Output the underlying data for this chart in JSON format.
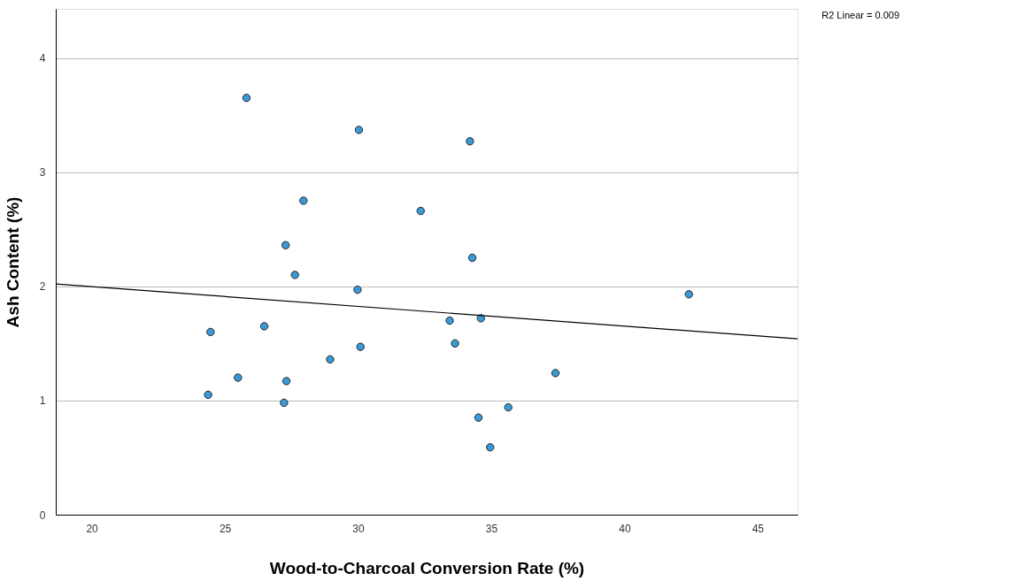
{
  "chart_data": {
    "type": "scatter",
    "xlabel": "Wood-to-Charcoal Conversion Rate (%)",
    "ylabel": "Ash Content (%)",
    "xlim": [
      18.65,
      46.5
    ],
    "xticks": [
      20,
      25,
      30,
      35,
      40,
      45
    ],
    "ylim": [
      0,
      4.43
    ],
    "yticks": [
      0,
      1,
      2,
      3,
      4
    ],
    "grid": "y",
    "annotations": [
      "R2 Linear =  0.009"
    ],
    "series": [
      {
        "type": "scatter",
        "marker": "circle",
        "color": "#3a9ad9",
        "x": [
          25.81,
          30.03,
          34.2,
          27.95,
          32.35,
          27.28,
          34.29,
          27.63,
          29.98,
          42.42,
          33.44,
          34.61,
          24.46,
          26.48,
          33.64,
          30.09,
          28.95,
          37.41,
          25.49,
          27.31,
          24.37,
          27.22,
          35.64,
          34.52,
          34.96
        ],
        "values": [
          3.65,
          3.37,
          3.27,
          2.75,
          2.66,
          2.36,
          2.25,
          2.1,
          1.97,
          1.93,
          1.7,
          1.72,
          1.6,
          1.65,
          1.5,
          1.47,
          1.36,
          1.24,
          1.2,
          1.17,
          1.05,
          0.98,
          0.94,
          0.85,
          0.59
        ]
      },
      {
        "type": "line",
        "marker": "none",
        "color": "#000000",
        "x": [
          18.65,
          46.5
        ],
        "values": [
          2.02,
          1.54
        ]
      }
    ]
  }
}
